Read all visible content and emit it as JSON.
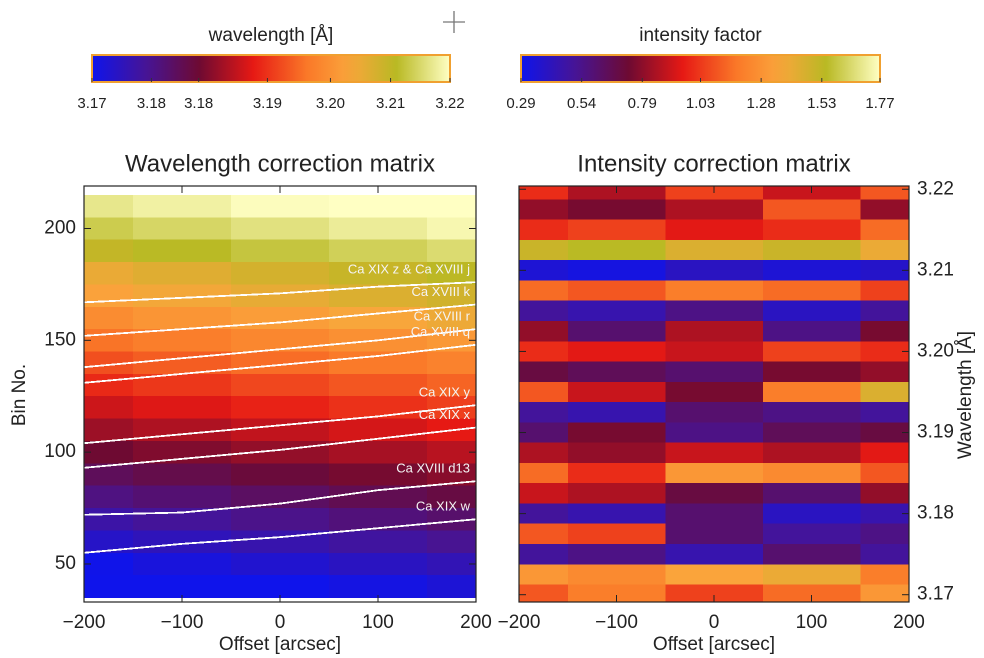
{
  "chart_data": [
    {
      "type": "heatmap",
      "title": "Wavelength correction matrix",
      "xlabel": "Offset [arcsec]",
      "ylabel": "Bin No.",
      "x": [
        -200,
        -100,
        0,
        100,
        200
      ],
      "y": [
        210,
        200,
        190,
        180,
        170,
        160,
        150,
        140,
        130,
        120,
        110,
        100,
        90,
        80,
        70,
        60,
        50,
        40
      ],
      "z": [
        [
          3.2174,
          3.2185,
          3.2197,
          3.2209,
          3.222
        ],
        [
          3.2145,
          3.2156,
          3.2168,
          3.218,
          3.2191
        ],
        [
          3.2115,
          3.2126,
          3.2138,
          3.215,
          3.2161
        ],
        [
          3.2076,
          3.2087,
          3.2099,
          3.2111,
          3.2122
        ],
        [
          3.2056,
          3.2067,
          3.2079,
          3.2091,
          3.2102
        ],
        [
          3.2027,
          3.2038,
          3.205,
          3.2062,
          3.2073
        ],
        [
          3.1997,
          3.2008,
          3.202,
          3.2032,
          3.2043
        ],
        [
          3.1968,
          3.1979,
          3.1991,
          3.2003,
          3.2014
        ],
        [
          3.1938,
          3.1949,
          3.1961,
          3.1973,
          3.1984
        ],
        [
          3.1909,
          3.192,
          3.1932,
          3.1944,
          3.1955
        ],
        [
          3.1879,
          3.189,
          3.1902,
          3.1914,
          3.1925
        ],
        [
          3.185,
          3.1861,
          3.1873,
          3.1885,
          3.1896
        ],
        [
          3.182,
          3.1831,
          3.1843,
          3.1855,
          3.1866
        ],
        [
          3.1791,
          3.1802,
          3.1814,
          3.1826,
          3.1837
        ],
        [
          3.1761,
          3.1772,
          3.1784,
          3.1796,
          3.1807
        ],
        [
          3.1732,
          3.1743,
          3.1755,
          3.1767,
          3.1778
        ],
        [
          3.1702,
          3.1713,
          3.1725,
          3.1737,
          3.1748
        ],
        [
          3.1673,
          3.1684,
          3.1696,
          3.1708,
          3.1719
        ]
      ],
      "xlim": [
        -200,
        200
      ],
      "xticks": [
        {
          "value": -200,
          "label": "−200"
        },
        {
          "value": -100,
          "label": "−100"
        },
        0,
        100,
        200
      ],
      "ylim": [
        33,
        219
      ],
      "yticks": [
        50,
        100,
        150,
        200
      ],
      "colorbar": {
        "label": "wavelength [Å]",
        "lim": [
          3.17,
          3.22
        ],
        "ticks": [
          3.17,
          {
            "value": 3.1783,
            "label": "3.18"
          },
          {
            "value": 3.1849,
            "label": "3.18"
          },
          {
            "value": 3.1945,
            "label": "3.19"
          },
          {
            "value": 3.2033,
            "label": "3.20"
          },
          {
            "value": 3.2117,
            "label": "3.21"
          },
          3.22
        ]
      },
      "contours": [
        {
          "label": "Ca XIX z & Ca XVIII j",
          "values": [
            167,
            169,
            171,
            174,
            176
          ]
        },
        {
          "label": "Ca XVIII k",
          "values": [
            152,
            155,
            158,
            162,
            166
          ]
        },
        {
          "label": "Ca XVIII r",
          "values": [
            138,
            142,
            146,
            150,
            155
          ]
        },
        {
          "label": "Ca XVIII q",
          "values": [
            131,
            135,
            139,
            143,
            148
          ]
        },
        {
          "label": "Ca XIX y",
          "values": [
            104,
            108,
            112,
            116,
            121
          ]
        },
        {
          "label": "Ca XIX x",
          "values": [
            93,
            97,
            101,
            106,
            111
          ]
        },
        {
          "label": "Ca XVIII d13",
          "values": [
            72,
            73,
            77,
            83,
            87
          ]
        },
        {
          "label": "Ca XIX w",
          "values": [
            55,
            59,
            62,
            66,
            70
          ]
        }
      ]
    },
    {
      "type": "heatmap",
      "title": "Intensity correction matrix",
      "xlabel": "Offset [arcsec]",
      "y2label": "Wavelength [Å]",
      "x": [
        -200,
        -100,
        0,
        100,
        200
      ],
      "y": [
        3.22,
        3.2175,
        3.215,
        3.2125,
        3.21,
        3.2075,
        3.205,
        3.2025,
        3.2,
        3.1975,
        3.195,
        3.1925,
        3.19,
        3.1875,
        3.185,
        3.1825,
        3.18,
        3.1775,
        3.175,
        3.1725,
        3.17
      ],
      "z": [
        [
          1.0,
          0.85,
          1.05,
          0.9,
          1.1
        ],
        [
          0.8,
          0.75,
          0.85,
          1.1,
          0.8
        ],
        [
          1.0,
          1.05,
          0.95,
          1.0,
          1.15
        ],
        [
          1.5,
          1.55,
          1.45,
          1.5,
          1.4
        ],
        [
          0.35,
          0.32,
          0.4,
          0.35,
          0.38
        ],
        [
          1.15,
          1.1,
          1.2,
          1.15,
          1.05
        ],
        [
          0.5,
          0.45,
          0.55,
          0.4,
          0.5
        ],
        [
          0.8,
          0.6,
          0.85,
          0.55,
          0.75
        ],
        [
          1.0,
          0.95,
          0.9,
          1.05,
          1.0
        ],
        [
          0.7,
          0.65,
          0.6,
          0.75,
          0.8
        ],
        [
          1.1,
          0.9,
          0.75,
          1.2,
          1.45
        ],
        [
          0.5,
          0.45,
          0.6,
          0.55,
          0.5
        ],
        [
          0.6,
          0.75,
          0.55,
          0.65,
          0.7
        ],
        [
          0.85,
          0.8,
          0.9,
          0.85,
          0.95
        ],
        [
          1.15,
          1.0,
          1.3,
          1.25,
          1.1
        ],
        [
          0.9,
          0.85,
          0.7,
          0.6,
          0.8
        ],
        [
          0.5,
          0.45,
          0.6,
          0.4,
          0.45
        ],
        [
          1.1,
          1.05,
          0.6,
          0.5,
          0.55
        ],
        [
          0.5,
          0.55,
          0.45,
          0.6,
          0.5
        ],
        [
          1.3,
          1.25,
          1.35,
          1.4,
          1.2
        ],
        [
          1.1,
          1.2,
          1.05,
          1.15,
          1.3
        ]
      ],
      "xlim": [
        -200,
        200
      ],
      "xticks": [
        {
          "value": -200,
          "label": "−200"
        },
        {
          "value": -100,
          "label": "−100"
        },
        0,
        100,
        200
      ],
      "y2lim": [
        3.1691,
        3.2204
      ],
      "y2ticks": [
        3.17,
        3.18,
        3.19,
        {
          "value": 3.2,
          "label": "3.20"
        },
        3.21,
        3.22
      ],
      "colorbar": {
        "label": "intensity factor",
        "lim": [
          0.29,
          1.77
        ],
        "ticks": [
          0.29,
          0.54,
          0.79,
          1.03,
          1.28,
          1.53,
          1.77
        ]
      }
    }
  ]
}
